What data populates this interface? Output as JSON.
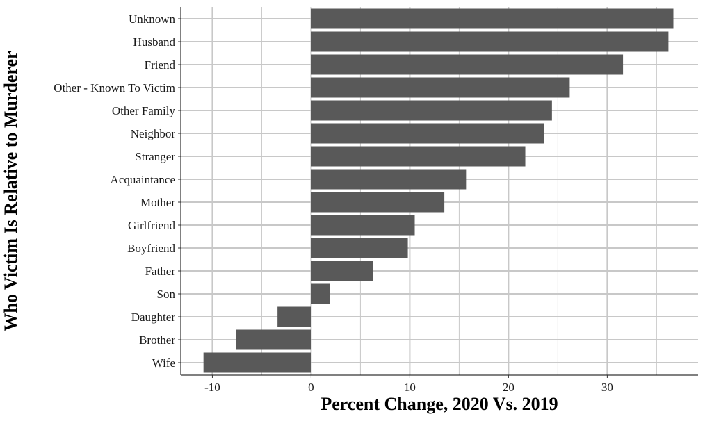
{
  "chart_data": {
    "type": "bar",
    "orientation": "horizontal",
    "title": "",
    "xlabel": "Percent Change, 2020 Vs. 2019",
    "ylabel": "Who Victim Is Relative to Murderer",
    "xlim": [
      -13.2,
      39.2
    ],
    "xticks": [
      -10,
      0,
      10,
      20,
      30
    ],
    "xtick_labels": [
      "-10",
      "0",
      "10",
      "20",
      "30"
    ],
    "grid": true,
    "legend": "none",
    "bar_color": "#595959",
    "grid_color": "#c8c8c8",
    "categories": [
      "Unknown",
      "Husband",
      "Friend",
      "Other - Known To Victim",
      "Other Family",
      "Neighbor",
      "Stranger",
      "Acquaintance",
      "Mother",
      "Girlfriend",
      "Boyfriend",
      "Father",
      "Son",
      "Daughter",
      "Brother",
      "Wife"
    ],
    "values": [
      36.7,
      36.2,
      31.6,
      26.2,
      24.4,
      23.6,
      21.7,
      15.7,
      13.5,
      10.5,
      9.8,
      6.3,
      1.9,
      -3.4,
      -7.6,
      -10.9
    ]
  }
}
